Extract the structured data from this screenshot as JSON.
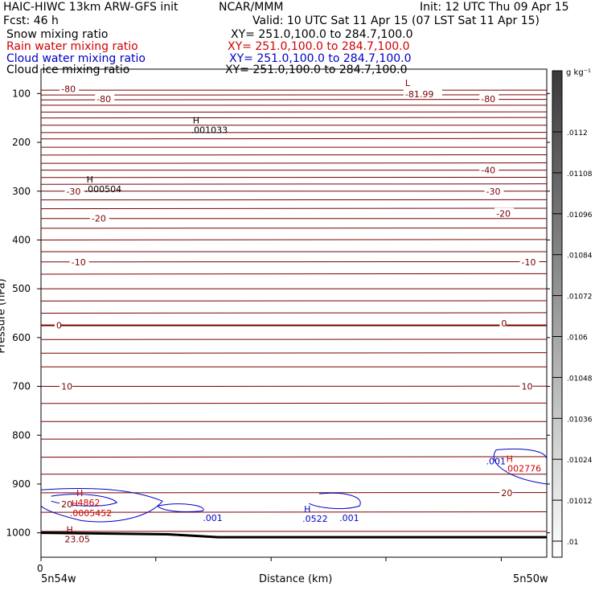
{
  "header": {
    "title_left": "HAIC-HIWC 13km ARW-GFS init",
    "title_center": "NCAR/MMM",
    "init": "Init: 12 UTC Thu 09 Apr 15",
    "fcst": "Fcst:    46 h",
    "valid": "Valid: 10 UTC Sat 11 Apr 15 (07 LST Sat 11 Apr 15)"
  },
  "fields": [
    {
      "name": "Snow mixing ratio",
      "xy": "XY= 251.0,100.0 to 284.7,100.0",
      "color": "#000000"
    },
    {
      "name": "Rain water mixing ratio",
      "xy": "XY= 251.0,100.0 to 284.7,100.0",
      "color": "#d00000"
    },
    {
      "name": "Cloud water mixing ratio",
      "xy": "XY= 251.0,100.0 to 284.7,100.0",
      "color": "#0000c8"
    },
    {
      "name": "Cloud ice mixing ratio",
      "xy": "XY= 251.0,100.0 to 284.7,100.0",
      "color": "#000000"
    }
  ],
  "chart_data": {
    "type": "contour",
    "xlabel": "Distance (km)",
    "ylabel": "Pressure (hPa)",
    "x_start_label": "5n54w",
    "x_end_label": "5n50w",
    "x_zero": "0",
    "y_ticks": [
      100,
      200,
      300,
      400,
      500,
      600,
      700,
      800,
      900,
      1000
    ],
    "ylim": [
      1050,
      50
    ],
    "colorbar": {
      "unit": "g kg⁻¹",
      "labels": [
        ".0112",
        ".01108",
        ".01096",
        ".01084",
        ".01072",
        ".0106",
        ".01048",
        ".01036",
        ".01024",
        ".01012",
        ".01"
      ]
    },
    "temperature_labels": [
      {
        "text": "-80",
        "p": 90,
        "pos": 0.04
      },
      {
        "text": "-80",
        "p": 111,
        "pos": 0.11
      },
      {
        "text": "-80",
        "p": 111,
        "pos": 0.87
      },
      {
        "text": "-81.99",
        "p": 101,
        "pos": 0.72
      },
      {
        "text": "-40",
        "p": 257,
        "pos": 0.87
      },
      {
        "text": "-30",
        "p": 300,
        "pos": 0.05
      },
      {
        "text": "-30",
        "p": 300,
        "pos": 0.88
      },
      {
        "text": "-20",
        "p": 356,
        "pos": 0.1
      },
      {
        "text": "-20",
        "p": 346,
        "pos": 0.9
      },
      {
        "text": "-10",
        "p": 445,
        "pos": 0.06
      },
      {
        "text": "-10",
        "p": 445,
        "pos": 0.95
      },
      {
        "text": "0",
        "p": 575,
        "pos": 0.03
      },
      {
        "text": "0",
        "p": 571,
        "pos": 0.91
      },
      {
        "text": "10",
        "p": 700,
        "pos": 0.04
      },
      {
        "text": "10",
        "p": 700,
        "pos": 0.95
      },
      {
        "text": "20",
        "p": 941,
        "pos": 0.04
      },
      {
        "text": "20",
        "p": 918,
        "pos": 0.91
      }
    ],
    "extrema": [
      {
        "mark": "H",
        "value": ".001033",
        "p": 161,
        "pos": 0.3,
        "color": "#000000"
      },
      {
        "mark": "H",
        "value": ".000504",
        "p": 282,
        "pos": 0.09,
        "color": "#000000"
      },
      {
        "mark": "L",
        "value": "",
        "p": 85,
        "pos": 0.72,
        "color": "#7a0000"
      },
      {
        "mark": "H",
        "value": ".4862",
        "p": 925,
        "pos": 0.07,
        "color": "#d00000"
      },
      {
        "mark": "H",
        "value": ".0005452",
        "p": 946,
        "pos": 0.06,
        "color": "#d00000"
      },
      {
        "mark": "H",
        "value": "23.05",
        "p": 1000,
        "pos": 0.05,
        "color": "#7a0000"
      },
      {
        "mark": "H",
        "value": ".0522",
        "p": 958,
        "pos": 0.52,
        "color": "#0000c8"
      },
      {
        "mark": "H",
        "value": ".002776",
        "p": 855,
        "pos": 0.92,
        "color": "#d00000"
      }
    ],
    "cloud_water_labels": [
      {
        "text": ".001",
        "p": 969,
        "pos": 0.32
      },
      {
        "text": ".001",
        "p": 969,
        "pos": 0.59
      },
      {
        "text": ".001",
        "p": 853,
        "pos": 0.88
      }
    ]
  }
}
